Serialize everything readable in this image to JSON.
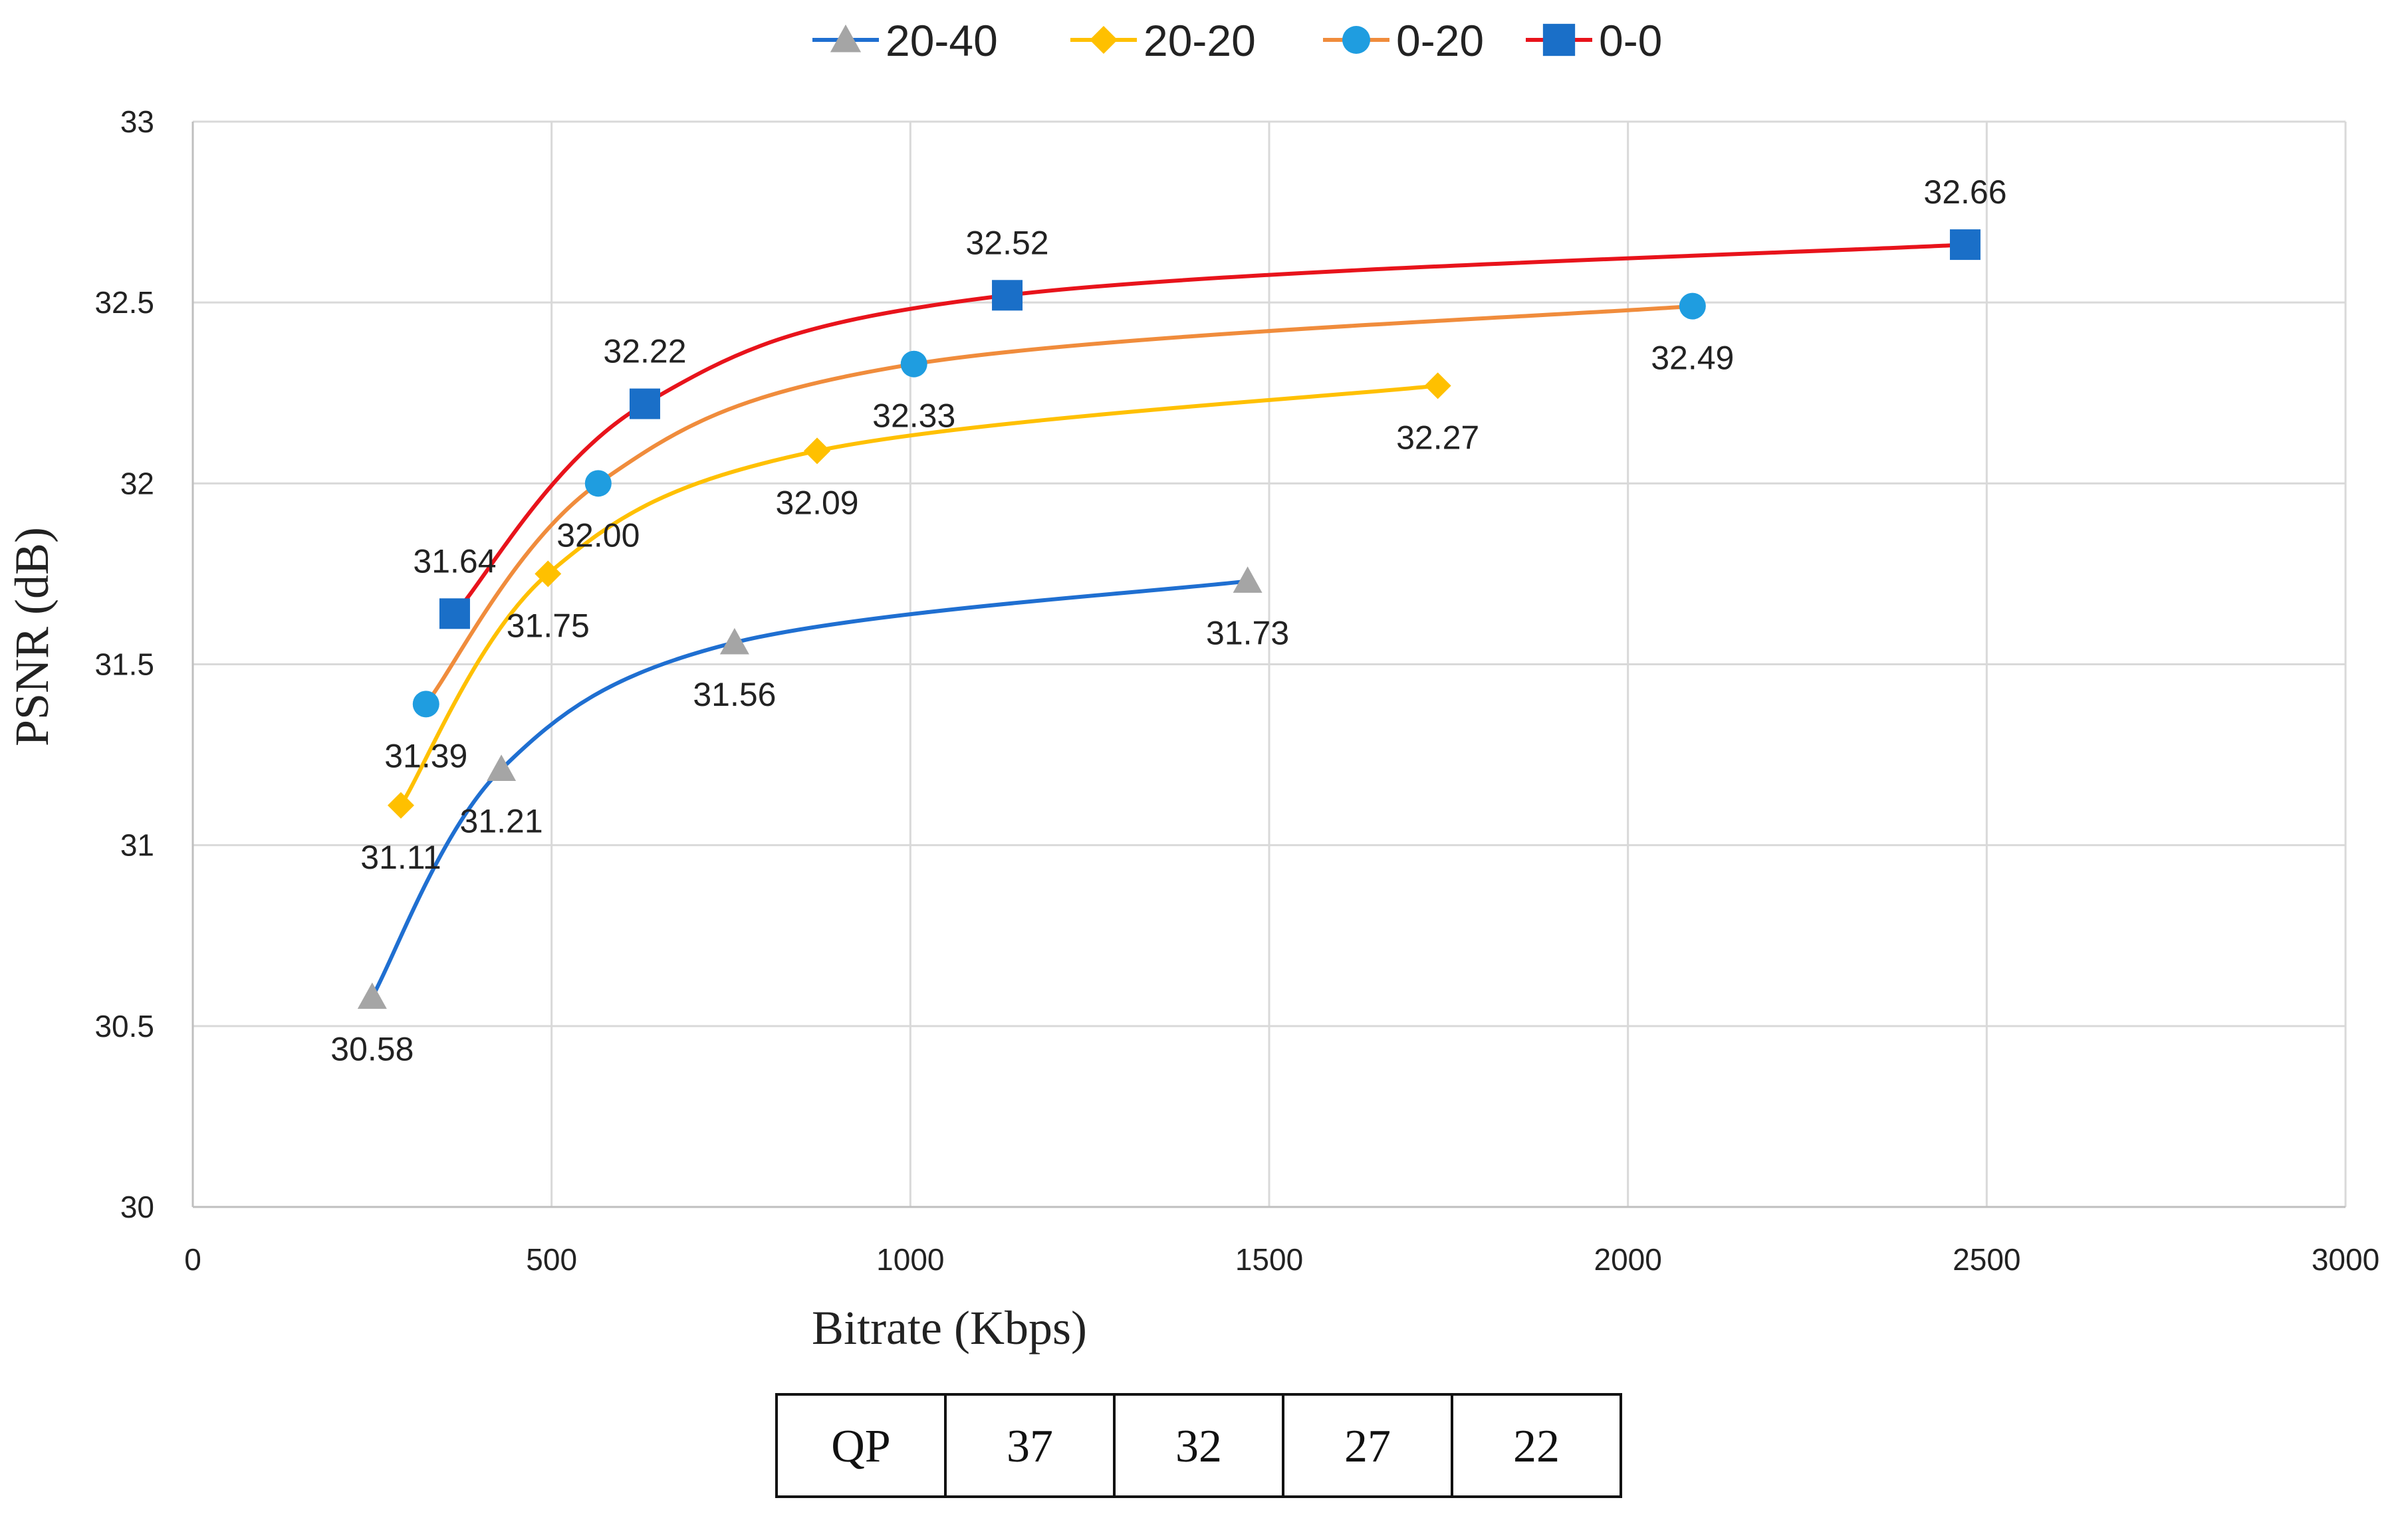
{
  "chart_data": {
    "type": "line",
    "title": "",
    "xlabel": "Bitrate (Kbps)",
    "ylabel": "PSNR (dB)",
    "xlim": [
      0,
      3000
    ],
    "ylim": [
      30,
      33
    ],
    "xticks": [
      0,
      500,
      1000,
      1500,
      2000,
      2500,
      3000
    ],
    "yticks": [
      30,
      30.5,
      31,
      31.5,
      32,
      32.5,
      33
    ],
    "ytick_labels": [
      "30",
      "30.5",
      "31",
      "31.5",
      "32",
      "32.5",
      "33"
    ],
    "grid": true,
    "legend_position": "top",
    "series": [
      {
        "name": "20-40",
        "line_color": "#1f6fd1",
        "marker_color": "#a5a5a5",
        "marker": "triangle",
        "points": [
          [
            250,
            30.58
          ],
          [
            430,
            31.21
          ],
          [
            755,
            31.56
          ],
          [
            1470,
            31.73
          ]
        ],
        "labels": [
          "30.58",
          "31.21",
          "31.56",
          "31.73"
        ]
      },
      {
        "name": "20-20",
        "line_color": "#ffc000",
        "marker_color": "#ffc000",
        "marker": "diamond",
        "points": [
          [
            290,
            31.11
          ],
          [
            495,
            31.75
          ],
          [
            870,
            32.09
          ],
          [
            1735,
            32.27
          ]
        ],
        "labels": [
          "31.11",
          "31.75",
          "32.09",
          "32.27"
        ]
      },
      {
        "name": "0-20",
        "line_color": "#f08c3c",
        "marker_color": "#1f9de0",
        "marker": "circle",
        "points": [
          [
            325,
            31.39
          ],
          [
            565,
            32.0
          ],
          [
            1005,
            32.33
          ],
          [
            2090,
            32.49
          ]
        ],
        "labels": [
          "31.39",
          "32.00",
          "32.33",
          "32.49"
        ]
      },
      {
        "name": "0-0",
        "line_color": "#e8131b",
        "marker_color": "#1a6fc8",
        "marker": "square",
        "points": [
          [
            365,
            31.64
          ],
          [
            630,
            32.22
          ],
          [
            1135,
            32.52
          ],
          [
            2470,
            32.66
          ]
        ],
        "labels": [
          "31.64",
          "32.22",
          "32.52",
          "32.66"
        ]
      }
    ],
    "qp_table": {
      "header": "QP",
      "values": [
        "37",
        "32",
        "27",
        "22"
      ]
    }
  }
}
